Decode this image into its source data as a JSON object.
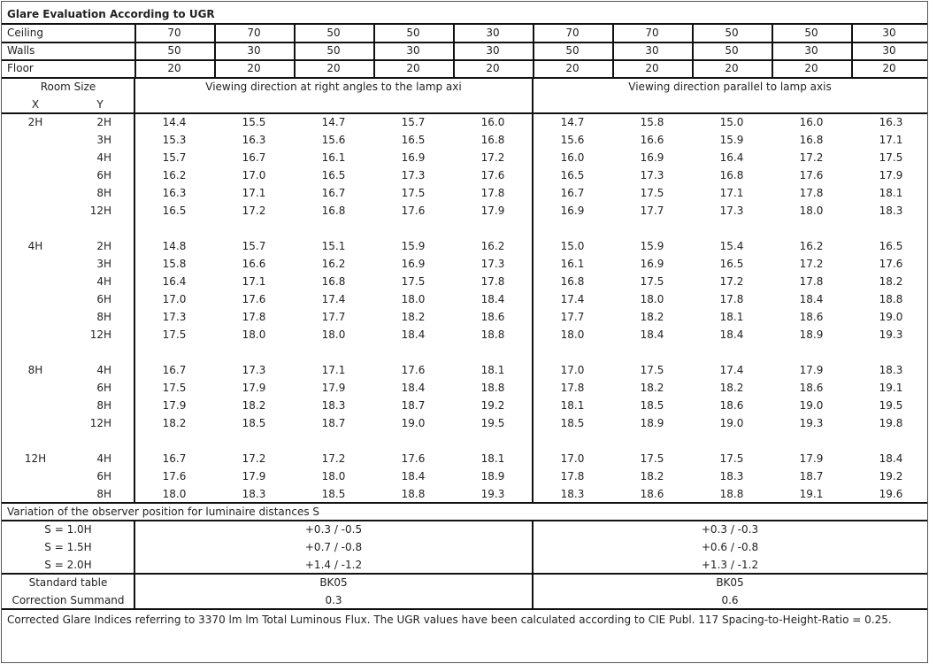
{
  "title": "Glare Evaluation According to UGR",
  "reflectances": {
    "ceiling_label": "Ceiling",
    "walls_label": "Walls",
    "floor_label": "Floor",
    "ceiling": [
      "70",
      "70",
      "50",
      "50",
      "30",
      "70",
      "70",
      "50",
      "50",
      "30"
    ],
    "walls": [
      "50",
      "30",
      "50",
      "30",
      "30",
      "50",
      "30",
      "50",
      "30",
      "30"
    ],
    "floor": [
      "20",
      "20",
      "20",
      "20",
      "20",
      "20",
      "20",
      "20",
      "20",
      "20"
    ]
  },
  "header": {
    "room_size": "Room Size",
    "x_label": "X",
    "y_label": "Y",
    "perpendicular": "Viewing direction at right angles to the lamp axi",
    "parallel": "Viewing direction parallel to lamp axis"
  },
  "blocks": [
    {
      "x": "2H",
      "rows": [
        {
          "y": "2H",
          "perp": [
            "14.4",
            "15.5",
            "14.7",
            "15.7",
            "16.0"
          ],
          "par": [
            "14.7",
            "15.8",
            "15.0",
            "16.0",
            "16.3"
          ]
        },
        {
          "y": "3H",
          "perp": [
            "15.3",
            "16.3",
            "15.6",
            "16.5",
            "16.8"
          ],
          "par": [
            "15.6",
            "16.6",
            "15.9",
            "16.8",
            "17.1"
          ]
        },
        {
          "y": "4H",
          "perp": [
            "15.7",
            "16.7",
            "16.1",
            "16.9",
            "17.2"
          ],
          "par": [
            "16.0",
            "16.9",
            "16.4",
            "17.2",
            "17.5"
          ]
        },
        {
          "y": "6H",
          "perp": [
            "16.2",
            "17.0",
            "16.5",
            "17.3",
            "17.6"
          ],
          "par": [
            "16.5",
            "17.3",
            "16.8",
            "17.6",
            "17.9"
          ]
        },
        {
          "y": "8H",
          "perp": [
            "16.3",
            "17.1",
            "16.7",
            "17.5",
            "17.8"
          ],
          "par": [
            "16.7",
            "17.5",
            "17.1",
            "17.8",
            "18.1"
          ]
        },
        {
          "y": "12H",
          "perp": [
            "16.5",
            "17.2",
            "16.8",
            "17.6",
            "17.9"
          ],
          "par": [
            "16.9",
            "17.7",
            "17.3",
            "18.0",
            "18.3"
          ]
        }
      ]
    },
    {
      "x": "4H",
      "rows": [
        {
          "y": "2H",
          "perp": [
            "14.8",
            "15.7",
            "15.1",
            "15.9",
            "16.2"
          ],
          "par": [
            "15.0",
            "15.9",
            "15.4",
            "16.2",
            "16.5"
          ]
        },
        {
          "y": "3H",
          "perp": [
            "15.8",
            "16.6",
            "16.2",
            "16.9",
            "17.3"
          ],
          "par": [
            "16.1",
            "16.9",
            "16.5",
            "17.2",
            "17.6"
          ]
        },
        {
          "y": "4H",
          "perp": [
            "16.4",
            "17.1",
            "16.8",
            "17.5",
            "17.8"
          ],
          "par": [
            "16.8",
            "17.5",
            "17.2",
            "17.8",
            "18.2"
          ]
        },
        {
          "y": "6H",
          "perp": [
            "17.0",
            "17.6",
            "17.4",
            "18.0",
            "18.4"
          ],
          "par": [
            "17.4",
            "18.0",
            "17.8",
            "18.4",
            "18.8"
          ]
        },
        {
          "y": "8H",
          "perp": [
            "17.3",
            "17.8",
            "17.7",
            "18.2",
            "18.6"
          ],
          "par": [
            "17.7",
            "18.2",
            "18.1",
            "18.6",
            "19.0"
          ]
        },
        {
          "y": "12H",
          "perp": [
            "17.5",
            "18.0",
            "18.0",
            "18.4",
            "18.8"
          ],
          "par": [
            "18.0",
            "18.4",
            "18.4",
            "18.9",
            "19.3"
          ]
        }
      ]
    },
    {
      "x": "8H",
      "rows": [
        {
          "y": "4H",
          "perp": [
            "16.7",
            "17.3",
            "17.1",
            "17.6",
            "18.1"
          ],
          "par": [
            "17.0",
            "17.5",
            "17.4",
            "17.9",
            "18.3"
          ]
        },
        {
          "y": "6H",
          "perp": [
            "17.5",
            "17.9",
            "17.9",
            "18.4",
            "18.8"
          ],
          "par": [
            "17.8",
            "18.2",
            "18.2",
            "18.6",
            "19.1"
          ]
        },
        {
          "y": "8H",
          "perp": [
            "17.9",
            "18.2",
            "18.3",
            "18.7",
            "19.2"
          ],
          "par": [
            "18.1",
            "18.5",
            "18.6",
            "19.0",
            "19.5"
          ]
        },
        {
          "y": "12H",
          "perp": [
            "18.2",
            "18.5",
            "18.7",
            "19.0",
            "19.5"
          ],
          "par": [
            "18.5",
            "18.9",
            "19.0",
            "19.3",
            "19.8"
          ]
        }
      ]
    },
    {
      "x": "12H",
      "rows": [
        {
          "y": "4H",
          "perp": [
            "16.7",
            "17.2",
            "17.2",
            "17.6",
            "18.1"
          ],
          "par": [
            "17.0",
            "17.5",
            "17.5",
            "17.9",
            "18.4"
          ]
        },
        {
          "y": "6H",
          "perp": [
            "17.6",
            "17.9",
            "18.0",
            "18.4",
            "18.9"
          ],
          "par": [
            "17.8",
            "18.2",
            "18.3",
            "18.7",
            "19.2"
          ]
        },
        {
          "y": "8H",
          "perp": [
            "18.0",
            "18.3",
            "18.5",
            "18.8",
            "19.3"
          ],
          "par": [
            "18.3",
            "18.6",
            "18.8",
            "19.1",
            "19.6"
          ]
        }
      ]
    }
  ],
  "variation": {
    "title": "Variation of the observer position for luminaire distances S",
    "rows": [
      {
        "label": "S = 1.0H",
        "perp": "+0.3 / -0.5",
        "par": "+0.3 / -0.3"
      },
      {
        "label": "S = 1.5H",
        "perp": "+0.7 / -0.8",
        "par": "+0.6 / -0.8"
      },
      {
        "label": "S = 2.0H",
        "perp": "+1.4 / -1.2",
        "par": "+1.3 / -1.2"
      }
    ]
  },
  "standard": {
    "table_label": "Standard table",
    "table_perp": "BK05",
    "table_par": "BK05",
    "correction_label": "Correction Summand",
    "correction_perp": "0.3",
    "correction_par": "0.6"
  },
  "footer": "Corrected Glare Indices referring to 3370 lm lm Total Luminous Flux. The UGR values have been calculated according to CIE Publ. 117    Spacing-to-Height-Ratio = 0.25."
}
